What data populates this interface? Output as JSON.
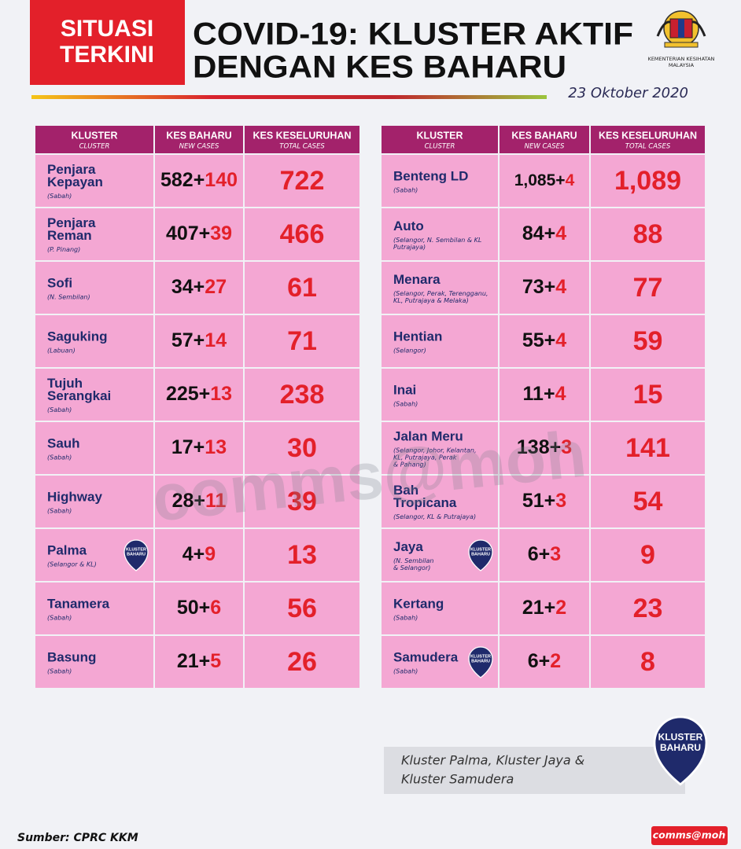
{
  "header": {
    "badge": [
      "SITUASI",
      "TERKINI"
    ],
    "title": [
      "COVID-19: KLUSTER AKTIF",
      "DENGAN KES BAHARU"
    ],
    "ministry": [
      "KEMENTERIAN KESIHATAN",
      "MALAYSIA"
    ],
    "date": "23 Oktober 2020"
  },
  "columns": [
    {
      "label": "KLUSTER",
      "sub": "CLUSTER"
    },
    {
      "label": "KES BAHARU",
      "sub": "NEW CASES"
    },
    {
      "label": "KES KESELURUHAN",
      "sub": "TOTAL CASES"
    }
  ],
  "new_badge": [
    "KLUSTER",
    "BAHARU"
  ],
  "tables": [
    {
      "rows": [
        {
          "name": [
            "Penjara",
            "Kepayan"
          ],
          "region": [
            "(Sabah)"
          ],
          "base": "582+",
          "added": "140",
          "total": "722",
          "new": false
        },
        {
          "name": [
            "Penjara",
            "Reman"
          ],
          "region": [
            "(P. Pinang)"
          ],
          "base": "407+",
          "added": "39",
          "total": "466",
          "new": false
        },
        {
          "name": [
            "Sofi"
          ],
          "region": [
            "(N. Sembilan)"
          ],
          "base": "34+",
          "added": "27",
          "total": "61",
          "new": false
        },
        {
          "name": [
            "Saguking"
          ],
          "region": [
            "(Labuan)"
          ],
          "base": "57+",
          "added": "14",
          "total": "71",
          "new": false
        },
        {
          "name": [
            "Tujuh",
            "Serangkai"
          ],
          "region": [
            "(Sabah)"
          ],
          "base": "225+",
          "added": "13",
          "total": "238",
          "new": false
        },
        {
          "name": [
            "Sauh"
          ],
          "region": [
            "(Sabah)"
          ],
          "base": "17+",
          "added": "13",
          "total": "30",
          "new": false
        },
        {
          "name": [
            "Highway"
          ],
          "region": [
            "(Sabah)"
          ],
          "base": "28+",
          "added": "11",
          "total": "39",
          "new": false
        },
        {
          "name": [
            "Palma"
          ],
          "region": [
            "(Selangor & KL)"
          ],
          "base": "4+",
          "added": "9",
          "total": "13",
          "new": true
        },
        {
          "name": [
            "Tanamera"
          ],
          "region": [
            "(Sabah)"
          ],
          "base": "50+",
          "added": "6",
          "total": "56",
          "new": false
        },
        {
          "name": [
            "Basung"
          ],
          "region": [
            "(Sabah)"
          ],
          "base": "21+",
          "added": "5",
          "total": "26",
          "new": false
        }
      ]
    },
    {
      "rows": [
        {
          "name": [
            "Benteng LD"
          ],
          "region": [
            "(Sabah)"
          ],
          "base": "1,085+",
          "added": "4",
          "total": "1,089",
          "new": false
        },
        {
          "name": [
            "Auto"
          ],
          "region": [
            "(Selangor, N. Sembilan & KL",
            "Putrajaya)"
          ],
          "base": "84+",
          "added": "4",
          "total": "88",
          "new": false
        },
        {
          "name": [
            "Menara"
          ],
          "region": [
            "(Selangor, Perak, Terengganu,",
            "KL, Putrajaya & Melaka)"
          ],
          "base": "73+",
          "added": "4",
          "total": "77",
          "new": false
        },
        {
          "name": [
            "Hentian"
          ],
          "region": [
            "(Selangor)"
          ],
          "base": "55+",
          "added": "4",
          "total": "59",
          "new": false
        },
        {
          "name": [
            "Inai"
          ],
          "region": [
            "(Sabah)"
          ],
          "base": "11+",
          "added": "4",
          "total": "15",
          "new": false
        },
        {
          "name": [
            "Jalan Meru"
          ],
          "region": [
            "(Selangor, Johor, Kelantan,",
            "KL, Putrajaya, Perak",
            "& Pahang)"
          ],
          "base": "138+",
          "added": "3",
          "total": "141",
          "new": false
        },
        {
          "name": [
            "Bah",
            "Tropicana"
          ],
          "region": [
            "(Selangor, KL & Putrajaya)"
          ],
          "base": "51+",
          "added": "3",
          "total": "54",
          "new": false
        },
        {
          "name": [
            "Jaya"
          ],
          "region": [
            "(N. Sembilan",
            "& Selangor)"
          ],
          "base": "6+",
          "added": "3",
          "total": "9",
          "new": true
        },
        {
          "name": [
            "Kertang"
          ],
          "region": [
            "(Sabah)"
          ],
          "base": "21+",
          "added": "2",
          "total": "23",
          "new": false
        },
        {
          "name": [
            "Samudera"
          ],
          "region": [
            "(Sabah)"
          ],
          "base": "6+",
          "added": "2",
          "total": "8",
          "new": true
        }
      ]
    }
  ],
  "note": [
    "Kluster Palma, Kluster Jaya &",
    "Kluster Samudera"
  ],
  "watermark": "comms@moh",
  "footer": {
    "source": "Sumber: CPRC KKM",
    "brand": "comms@moh"
  }
}
